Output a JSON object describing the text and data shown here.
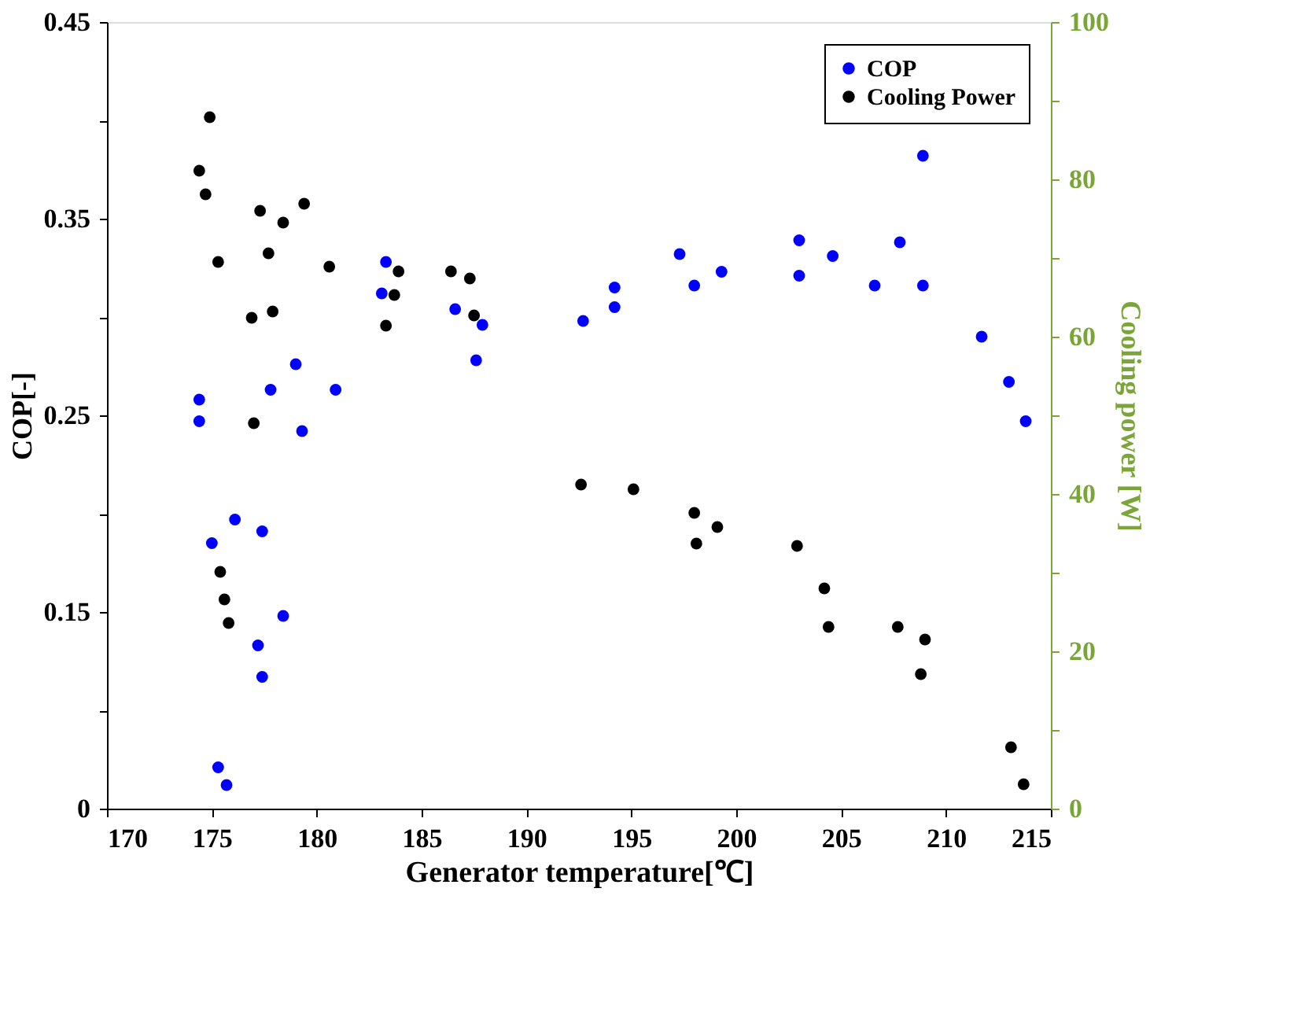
{
  "chart_data": {
    "type": "scatter",
    "xlabel": "Generator temperature[℃]",
    "ylabel": "COP[-]",
    "y2label": "Cooling power [W]",
    "xlim": [
      170,
      215
    ],
    "xticks": [
      170,
      175,
      180,
      185,
      190,
      195,
      200,
      205,
      210,
      215
    ],
    "ylim": [
      0.05,
      0.45
    ],
    "yticks": [
      {
        "value": 0.05,
        "label": "0"
      },
      {
        "value": 0.1,
        "label": null
      },
      0.15,
      {
        "value": 0.2,
        "label": null
      },
      0.25,
      {
        "value": 0.3,
        "label": null
      },
      0.35,
      {
        "value": 0.4,
        "label": null
      },
      0.45
    ],
    "y2lim": [
      0,
      100
    ],
    "y2ticks": [
      0,
      {
        "value": 10,
        "label": null
      },
      20,
      {
        "value": 30,
        "label": null
      },
      40,
      {
        "value": 50,
        "label": null
      },
      60,
      {
        "value": 70,
        "label": null
      },
      80,
      {
        "value": 90,
        "label": null
      },
      100
    ],
    "grid": false,
    "legend": "top right",
    "marker": "circle",
    "series": [
      {
        "name": "COP",
        "color": "#0000ff",
        "x": [
          183.3,
          183.1,
          186.6,
          187.9,
          187.6,
          192.7,
          194.2,
          194.2,
          179.0,
          177.8,
          180.9,
          174.4,
          174.4,
          179.3,
          176.1,
          177.4,
          175.0,
          178.4,
          177.2,
          177.4,
          175.3,
          175.7,
          197.3,
          198.0,
          199.3,
          203.0,
          203.0,
          204.6,
          206.6,
          207.8,
          208.9,
          208.9,
          211.7,
          213.0,
          213.8
        ],
        "values": [
          0.328,
          0.312,
          0.304,
          0.296,
          0.278,
          0.298,
          0.315,
          0.305,
          0.276,
          0.263,
          0.263,
          0.258,
          0.247,
          0.242,
          0.197,
          0.191,
          0.185,
          0.148,
          0.133,
          0.117,
          0.071,
          0.062,
          0.332,
          0.316,
          0.323,
          0.339,
          0.321,
          0.331,
          0.316,
          0.338,
          0.382,
          0.316,
          0.29,
          0.267,
          0.247
        ]
      },
      {
        "name": "Cooling Power",
        "color": "#000000",
        "axis": "y2",
        "x": [
          174.9,
          174.4,
          174.7,
          177.3,
          179.4,
          178.4,
          175.3,
          177.7,
          180.6,
          183.9,
          183.7,
          183.3,
          186.4,
          187.3,
          187.5,
          176.9,
          177.9,
          177.0,
          192.6,
          175.4,
          175.6,
          175.8,
          195.1,
          198.0,
          198.1,
          199.1,
          202.9,
          204.2,
          204.4,
          207.7,
          209.0,
          208.8,
          213.1,
          213.7
        ],
        "values": [
          87.9,
          81.1,
          78.1,
          76.0,
          76.9,
          74.5,
          69.5,
          70.6,
          68.9,
          68.3,
          65.3,
          61.4,
          68.3,
          67.4,
          62.7,
          62.4,
          63.2,
          49.0,
          41.2,
          30.1,
          26.6,
          23.6,
          40.6,
          37.6,
          33.7,
          35.8,
          33.4,
          28.0,
          23.1,
          23.1,
          21.5,
          17.1,
          7.8,
          3.1
        ]
      }
    ]
  }
}
